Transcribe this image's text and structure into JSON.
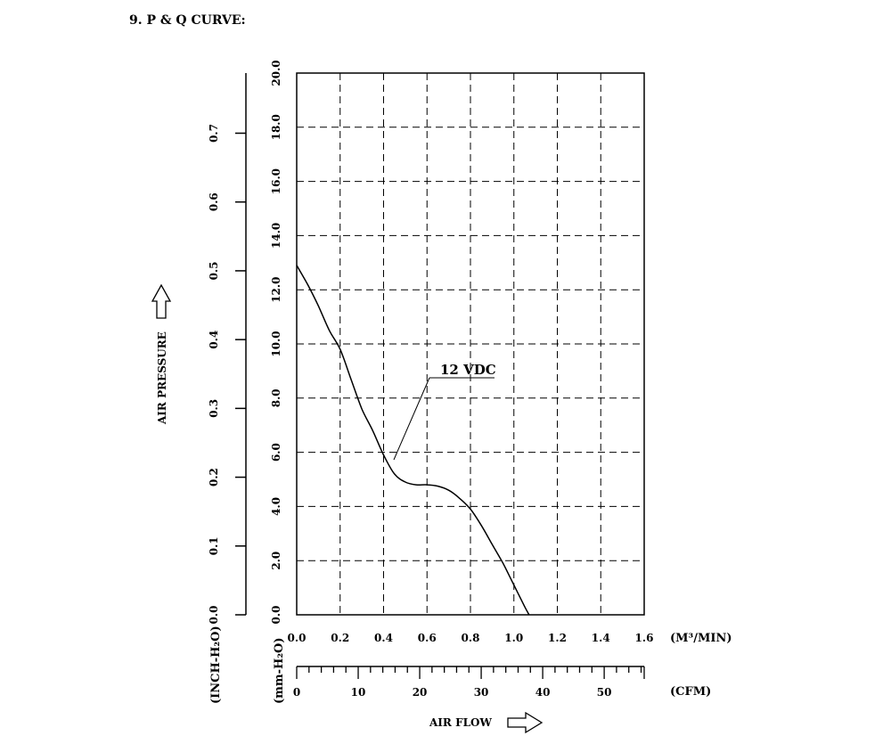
{
  "page": {
    "heading": "9. P & Q CURVE:"
  },
  "chart_data": {
    "type": "line",
    "title": "",
    "x": {
      "unit_primary": "(M³/MIN)",
      "ticks_primary": [
        "0.0",
        "0.2",
        "0.4",
        "0.6",
        "0.8",
        "1.0",
        "1.2",
        "1.4",
        "1.6"
      ],
      "range_primary": [
        0,
        1.6
      ],
      "unit_secondary": "(CFM)",
      "ticks_secondary": [
        "0",
        "10",
        "20",
        "30",
        "40",
        "50"
      ],
      "label": "AIR FLOW"
    },
    "y": {
      "unit_primary": "(mm-H₂O)",
      "ticks_primary": [
        "0.0",
        "2.0",
        "4.0",
        "6.0",
        "8.0",
        "10.0",
        "12.0",
        "14.0",
        "16.0",
        "18.0",
        "20.0"
      ],
      "range_primary": [
        0,
        20
      ],
      "unit_secondary": "(INCH-H₂O)",
      "ticks_secondary": [
        "0.0",
        "0.1",
        "0.2",
        "0.3",
        "0.4",
        "0.5",
        "0.6",
        "0.7"
      ],
      "label": "AIR PRESSURE"
    },
    "grid": true,
    "series": [
      {
        "name": "12 VDC",
        "points": [
          [
            0.0,
            12.9
          ],
          [
            0.05,
            12.2
          ],
          [
            0.1,
            11.4
          ],
          [
            0.15,
            10.5
          ],
          [
            0.2,
            9.8
          ],
          [
            0.25,
            8.7
          ],
          [
            0.3,
            7.6
          ],
          [
            0.35,
            6.8
          ],
          [
            0.4,
            5.9
          ],
          [
            0.45,
            5.2
          ],
          [
            0.5,
            4.9
          ],
          [
            0.55,
            4.8
          ],
          [
            0.6,
            4.8
          ],
          [
            0.65,
            4.75
          ],
          [
            0.7,
            4.6
          ],
          [
            0.75,
            4.3
          ],
          [
            0.8,
            3.9
          ],
          [
            0.85,
            3.3
          ],
          [
            0.9,
            2.6
          ],
          [
            0.95,
            1.9
          ],
          [
            1.0,
            1.1
          ],
          [
            1.05,
            0.3
          ],
          [
            1.07,
            0.0
          ]
        ]
      }
    ]
  }
}
